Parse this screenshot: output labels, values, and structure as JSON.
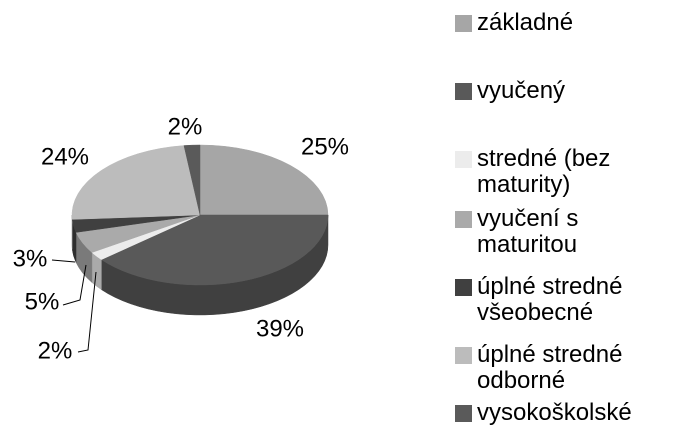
{
  "chart_data": {
    "type": "pie",
    "categories": [
      "základné",
      "vyučený",
      "stredné (bez maturity)",
      "vyučení s maturitou",
      "úplné stredné všeobecné",
      "úplné stredné odborné",
      "vysokoškolské"
    ],
    "values": [
      25,
      39,
      2,
      5,
      3,
      24,
      2
    ],
    "value_labels": [
      "25%",
      "39%",
      "2%",
      "5%",
      "3%",
      "24%",
      "2%"
    ],
    "colors": [
      "#a6a6a6",
      "#595959",
      "#ececec",
      "#aaaaaa",
      "#404040",
      "#bcbcbc",
      "#5a5a5a"
    ],
    "legend": "right"
  }
}
